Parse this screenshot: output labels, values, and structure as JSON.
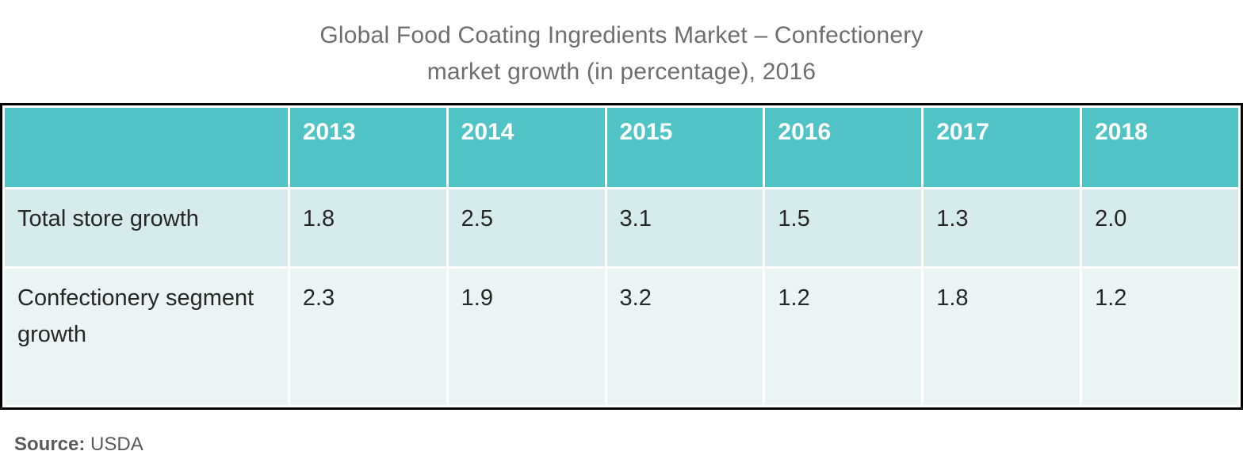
{
  "title": {
    "line1": "Global Food Coating Ingredients Market – Confectionery",
    "line2": "market growth (in percentage), 2016"
  },
  "table": {
    "corner_label": "",
    "years": [
      "2013",
      "2014",
      "2015",
      "2016",
      "2017",
      "2018"
    ],
    "rows": [
      {
        "label": "Total store growth",
        "values": [
          "1.8",
          "2.5",
          "3.1",
          "1.5",
          "1.3",
          "2.0"
        ]
      },
      {
        "label": "Confectionery segment growth",
        "values": [
          "2.3",
          "1.9",
          "3.2",
          "1.2",
          "1.8",
          "1.2"
        ]
      }
    ]
  },
  "source": {
    "label": "Source:",
    "value": "USDA"
  },
  "colors": {
    "header_bg": "#4FC3C6",
    "row1_bg": "#D6EBEC",
    "row2_bg": "#EAF4F5",
    "title_text": "#6E6E6E",
    "body_text": "#262626",
    "source_text": "#595959",
    "table_border": "#000000",
    "gridline": "#FFFFFF"
  },
  "chart_data": {
    "type": "table",
    "title": "Global Food Coating Ingredients Market – Confectionery market growth (in percentage), 2016",
    "categories": [
      "2013",
      "2014",
      "2015",
      "2016",
      "2017",
      "2018"
    ],
    "series": [
      {
        "name": "Total store growth",
        "values": [
          1.8,
          2.5,
          3.1,
          1.5,
          1.3,
          2.0
        ]
      },
      {
        "name": "Confectionery segment growth",
        "values": [
          2.3,
          1.9,
          3.2,
          1.2,
          1.8,
          1.2
        ]
      }
    ],
    "source": "USDA",
    "unit": "percentage"
  }
}
